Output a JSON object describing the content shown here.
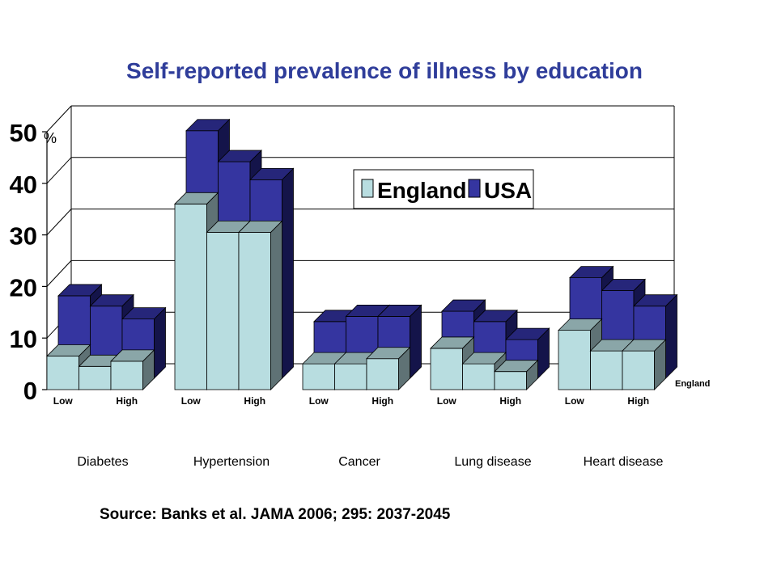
{
  "title": "Self-reported prevalence of illness by education",
  "source": "Source: Banks et al. JAMA 2006; 295: 2037-2045",
  "colors": {
    "england_front": "#b8dde0",
    "england_top": "#8aa6a8",
    "england_side": "#5f7275",
    "usa_front": "#3535a0",
    "usa_top": "#26267a",
    "usa_side": "#14144a",
    "grid": "#000000",
    "title": "#2f3d9a"
  },
  "chart_data": {
    "type": "bar",
    "title": "Self-reported prevalence of illness by education",
    "ylabel": "%",
    "ylim": [
      0,
      50
    ],
    "yticks": [
      0,
      10,
      20,
      30,
      40,
      50
    ],
    "groups": [
      "Diabetes",
      "Hypertension",
      "Cancer",
      "Lung disease",
      "Heart disease"
    ],
    "education_levels": [
      "Low",
      "",
      "High"
    ],
    "depth_label": "England",
    "grid": true,
    "legend_position": "top-right",
    "series": [
      {
        "name": "England",
        "values": [
          [
            6.5,
            4.5,
            5.5
          ],
          [
            36,
            30.5,
            30.5
          ],
          [
            5,
            5,
            6
          ],
          [
            8,
            5,
            3.5
          ],
          [
            11.5,
            7.5,
            7.5
          ]
        ]
      },
      {
        "name": "USA",
        "values": [
          [
            16,
            14,
            11.5
          ],
          [
            48,
            42,
            38.5
          ],
          [
            11,
            12,
            12
          ],
          [
            13,
            11,
            7.5
          ],
          [
            19.5,
            17,
            14
          ]
        ]
      }
    ]
  }
}
